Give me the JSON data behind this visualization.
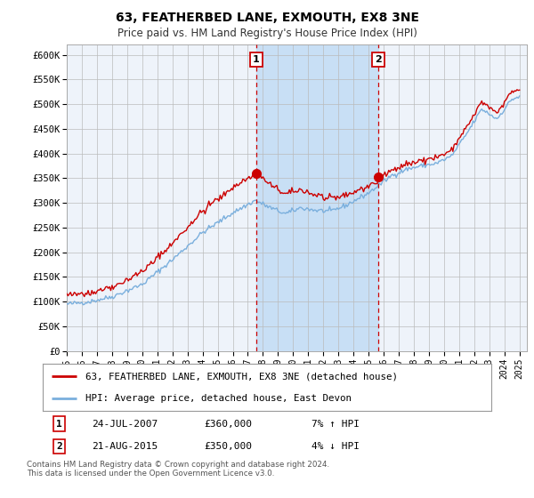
{
  "title": "63, FEATHERBED LANE, EXMOUTH, EX8 3NE",
  "subtitle": "Price paid vs. HM Land Registry's House Price Index (HPI)",
  "hpi_label": "HPI: Average price, detached house, East Devon",
  "property_label": "63, FEATHERBED LANE, EXMOUTH, EX8 3NE (detached house)",
  "sale1_date": "24-JUL-2007",
  "sale1_price": 360000,
  "sale1_pct": "7% ↑ HPI",
  "sale1_x": 2007.56,
  "sale2_date": "21-AUG-2015",
  "sale2_price": 350000,
  "sale2_pct": "4% ↓ HPI",
  "sale2_x": 2015.64,
  "ylabel_ticks": [
    "£0",
    "£50K",
    "£100K",
    "£150K",
    "£200K",
    "£250K",
    "£300K",
    "£350K",
    "£400K",
    "£450K",
    "£500K",
    "£550K",
    "£600K"
  ],
  "ylim": [
    0,
    620000
  ],
  "xlim_start": 1995.0,
  "xlim_end": 2025.5,
  "background_color": "#ffffff",
  "plot_bg_color": "#eef3fa",
  "hpi_color": "#7aafdd",
  "property_color": "#cc0000",
  "sale_marker_color": "#cc0000",
  "vline_color": "#cc0000",
  "shade_color": "#c8dff5",
  "grid_color": "#bbbbbb",
  "footer_text": "Contains HM Land Registry data © Crown copyright and database right 2024.\nThis data is licensed under the Open Government Licence v3.0.",
  "xticks": [
    1995,
    1996,
    1997,
    1998,
    1999,
    2000,
    2001,
    2002,
    2003,
    2004,
    2005,
    2006,
    2007,
    2008,
    2009,
    2010,
    2011,
    2012,
    2013,
    2014,
    2015,
    2016,
    2017,
    2018,
    2019,
    2020,
    2021,
    2022,
    2023,
    2024,
    2025
  ]
}
